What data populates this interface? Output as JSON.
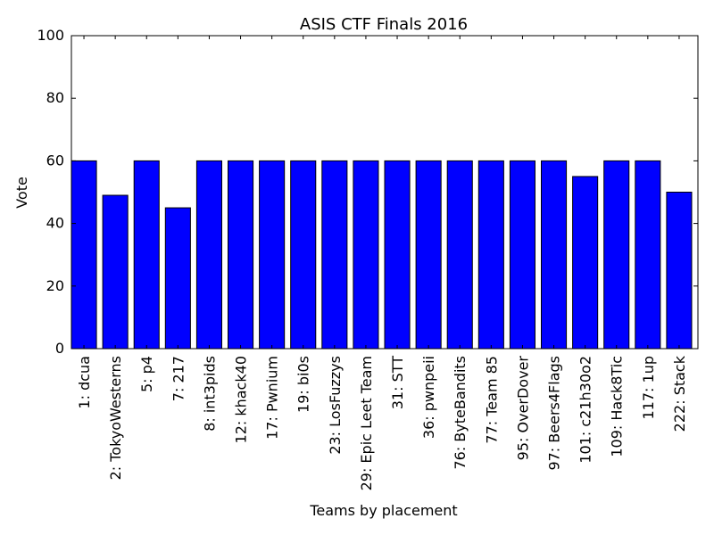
{
  "chart_data": {
    "type": "bar",
    "title": "ASIS CTF Finals 2016",
    "xlabel": "Teams by placement",
    "ylabel": "Vote",
    "ylim": [
      0,
      100
    ],
    "yticks": [
      0,
      20,
      40,
      60,
      80,
      100
    ],
    "grid": false,
    "bar_color": "#0000ff",
    "categories": [
      "1: dcua",
      "2: TokyoWesterns",
      "5: p4",
      "7: 217",
      "8: int3pids",
      "12: khack40",
      "17: Pwnium",
      "19: bi0s",
      "23: LosFuzzys",
      "29: Epic Leet Team",
      "31: STT",
      "36: pwnpeii",
      "76: ByteBandits",
      "77: Team 85",
      "95: OverDover",
      "97: Beers4Flags",
      "101: c21h30o2",
      "109: Hack8Tic",
      "117: 1up",
      "222: Stack"
    ],
    "values": [
      60,
      49,
      60,
      45,
      60,
      60,
      60,
      60,
      60,
      60,
      60,
      60,
      60,
      60,
      60,
      60,
      55,
      60,
      60,
      50
    ]
  }
}
